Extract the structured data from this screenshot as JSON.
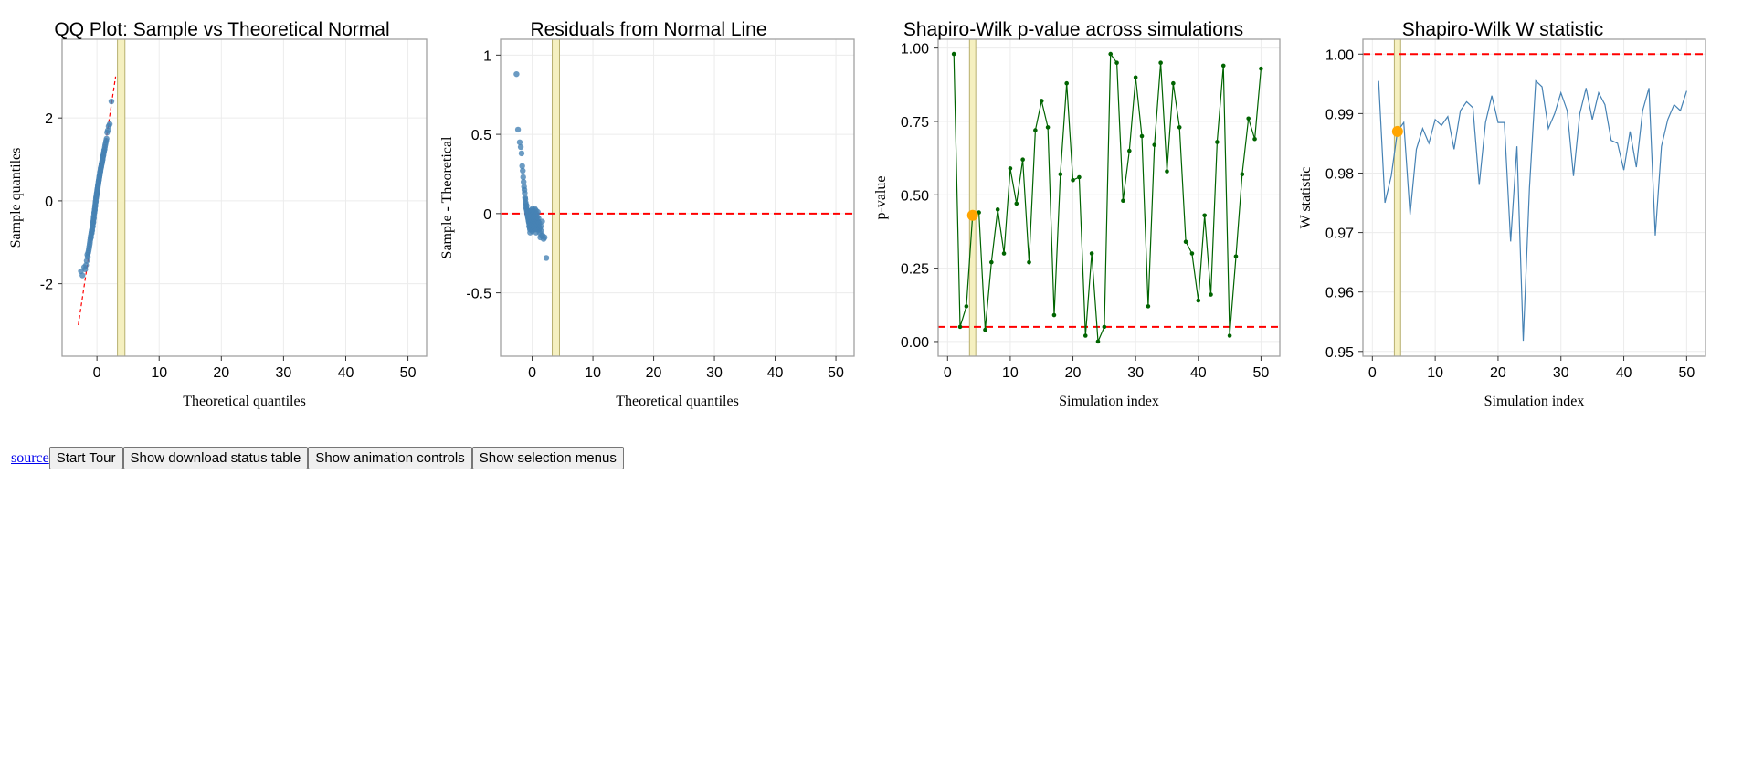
{
  "colors": {
    "points": "#4682b4",
    "ref_line": "#ff0000",
    "pvalue_line": "#006400",
    "selected": "#ffa500",
    "selection_band": "#f5f0c0",
    "panel_border": "#a0a0a0",
    "grid": "#ececec"
  },
  "selected_index": 4,
  "toolbar": {
    "source_label": "source",
    "start_tour_label": "Start Tour",
    "download_label": "Show download status table",
    "animation_label": "Show animation controls",
    "selection_label": "Show selection menus"
  },
  "chart_data": [
    {
      "id": "qq",
      "type": "scatter",
      "title": "QQ Plot: Sample vs Theoretical Normal",
      "xlabel": "Theoretical quantiles",
      "ylabel": "Sample quantiles",
      "xlim": [
        -5.6,
        53
      ],
      "ylim": [
        -3.75,
        3.9
      ],
      "xticks": [
        0,
        10,
        20,
        30,
        40,
        50
      ],
      "yticks": [
        -2,
        0,
        2
      ],
      "grid": true,
      "selection_band": [
        3.3,
        4.5
      ],
      "reference_line": {
        "x": [
          -3,
          3
        ],
        "y": [
          -3,
          3
        ],
        "style": "dashed"
      },
      "points": {
        "x": [
          -2.58,
          -2.33,
          -2.05,
          -1.88,
          -1.75,
          -1.64,
          -1.55,
          -1.48,
          -1.41,
          -1.34,
          -1.28,
          -1.23,
          -1.17,
          -1.13,
          -1.08,
          -1.04,
          -0.99,
          -0.95,
          -0.92,
          -0.88,
          -0.84,
          -0.81,
          -0.77,
          -0.74,
          -0.71,
          -0.67,
          -0.64,
          -0.61,
          -0.58,
          -0.55,
          -0.52,
          -0.5,
          -0.47,
          -0.44,
          -0.41,
          -0.39,
          -0.36,
          -0.33,
          -0.31,
          -0.28,
          -0.25,
          -0.23,
          -0.2,
          -0.18,
          -0.15,
          -0.13,
          -0.1,
          -0.08,
          -0.05,
          -0.03,
          0.0,
          0.03,
          0.05,
          0.08,
          0.1,
          0.13,
          0.15,
          0.18,
          0.2,
          0.23,
          0.25,
          0.28,
          0.31,
          0.33,
          0.36,
          0.39,
          0.41,
          0.44,
          0.47,
          0.5,
          0.52,
          0.55,
          0.58,
          0.61,
          0.64,
          0.67,
          0.71,
          0.74,
          0.77,
          0.81,
          0.84,
          0.88,
          0.92,
          0.95,
          0.99,
          1.04,
          1.08,
          1.13,
          1.17,
          1.23,
          1.28,
          1.34,
          1.41,
          1.48,
          1.55,
          1.64,
          1.75,
          1.88,
          2.05,
          2.33
        ],
        "y": [
          -1.7,
          -1.8,
          -1.6,
          -1.65,
          -1.55,
          -1.45,
          -1.3,
          -1.35,
          -1.25,
          -1.2,
          -1.15,
          -1.1,
          -1.05,
          -1.0,
          -0.95,
          -0.9,
          -0.85,
          -0.88,
          -0.8,
          -0.75,
          -0.78,
          -0.7,
          -0.72,
          -0.65,
          -0.6,
          -0.62,
          -0.55,
          -0.5,
          -0.52,
          -0.45,
          -0.4,
          -0.42,
          -0.35,
          -0.3,
          -0.28,
          -0.25,
          -0.2,
          -0.22,
          -0.15,
          -0.1,
          -0.12,
          -0.05,
          0.0,
          -0.02,
          0.05,
          0.08,
          0.1,
          0.12,
          0.15,
          0.18,
          0.2,
          0.22,
          0.25,
          0.28,
          0.3,
          0.32,
          0.35,
          0.38,
          0.4,
          0.42,
          0.45,
          0.48,
          0.5,
          0.52,
          0.55,
          0.58,
          0.6,
          0.62,
          0.65,
          0.68,
          0.7,
          0.72,
          0.75,
          0.78,
          0.8,
          0.82,
          0.85,
          0.88,
          0.9,
          0.92,
          0.95,
          0.98,
          1.0,
          1.05,
          1.08,
          1.1,
          1.15,
          1.18,
          1.22,
          1.25,
          1.3,
          1.35,
          1.4,
          1.45,
          1.5,
          1.65,
          1.7,
          1.8,
          1.85,
          2.4
        ]
      }
    },
    {
      "id": "residuals",
      "type": "scatter",
      "title": "Residuals from Normal Line",
      "xlabel": "Theoretical quantiles",
      "ylabel": "Sample - Theoretical",
      "xlim": [
        -5.2,
        53
      ],
      "ylim": [
        -0.9,
        1.1
      ],
      "xticks": [
        0,
        10,
        20,
        30,
        40,
        50
      ],
      "yticks": [
        -0.5,
        0.0,
        0.5,
        1.0
      ],
      "grid": true,
      "selection_band": [
        3.3,
        4.5
      ],
      "reference_line": {
        "y": 0,
        "style": "dashed"
      },
      "points": {
        "x": [
          -2.58,
          -2.33,
          -2.05,
          -1.88,
          -1.75,
          -1.64,
          -1.55,
          -1.48,
          -1.41,
          -1.34,
          -1.28,
          -1.23,
          -1.17,
          -1.13,
          -1.08,
          -1.04,
          -0.99,
          -0.95,
          -0.92,
          -0.88,
          -0.84,
          -0.81,
          -0.77,
          -0.74,
          -0.71,
          -0.67,
          -0.64,
          -0.61,
          -0.58,
          -0.55,
          -0.52,
          -0.5,
          -0.47,
          -0.44,
          -0.41,
          -0.39,
          -0.36,
          -0.33,
          -0.31,
          -0.28,
          -0.25,
          -0.23,
          -0.2,
          -0.18,
          -0.15,
          -0.13,
          -0.1,
          -0.08,
          -0.05,
          -0.03,
          0.0,
          0.03,
          0.05,
          0.08,
          0.1,
          0.13,
          0.15,
          0.18,
          0.2,
          0.23,
          0.25,
          0.28,
          0.31,
          0.33,
          0.36,
          0.39,
          0.41,
          0.44,
          0.47,
          0.5,
          0.52,
          0.55,
          0.58,
          0.61,
          0.64,
          0.67,
          0.71,
          0.74,
          0.77,
          0.81,
          0.84,
          0.88,
          0.92,
          0.95,
          0.99,
          1.04,
          1.08,
          1.13,
          1.17,
          1.23,
          1.28,
          1.34,
          1.41,
          1.48,
          1.55,
          1.64,
          1.75,
          1.88,
          2.05,
          2.33
        ],
        "y": [
          0.88,
          0.53,
          0.45,
          0.42,
          0.38,
          0.3,
          0.27,
          0.23,
          0.2,
          0.17,
          0.15,
          0.13,
          0.1,
          0.09,
          0.07,
          0.06,
          0.04,
          0.03,
          0.05,
          0.02,
          0.01,
          0.0,
          -0.01,
          0.02,
          -0.02,
          -0.03,
          0.0,
          -0.04,
          -0.05,
          -0.03,
          -0.06,
          -0.08,
          -0.05,
          -0.02,
          -0.07,
          -0.09,
          -0.1,
          -0.12,
          -0.08,
          -0.04,
          -0.02,
          -0.06,
          0.01,
          -0.03,
          0.02,
          -0.05,
          0.0,
          -0.09,
          -0.1,
          -0.07,
          -0.11,
          0.03,
          -0.02,
          -0.04,
          0.01,
          -0.08,
          0.02,
          -0.06,
          -0.1,
          -0.03,
          0.0,
          -0.05,
          -0.07,
          0.01,
          -0.09,
          -0.04,
          -0.02,
          0.03,
          -0.06,
          -0.1,
          -0.01,
          -0.05,
          -0.08,
          0.02,
          -0.12,
          -0.03,
          -0.06,
          0.0,
          -0.04,
          -0.09,
          -0.02,
          -0.1,
          0.01,
          -0.07,
          -0.05,
          -0.03,
          -0.08,
          -0.1,
          -0.06,
          -0.12,
          -0.09,
          -0.15,
          -0.08,
          -0.11,
          -0.14,
          -0.05,
          -0.14,
          -0.16,
          -0.15,
          -0.28
        ]
      }
    },
    {
      "id": "pvalue",
      "type": "line",
      "title": "Shapiro-Wilk p-value across simulations",
      "xlabel": "Simulation index",
      "ylabel": "p-value",
      "xlim": [
        -1.5,
        53
      ],
      "ylim": [
        -0.05,
        1.03
      ],
      "xticks": [
        0,
        10,
        20,
        30,
        40,
        50
      ],
      "yticks": [
        0.0,
        0.25,
        0.5,
        0.75,
        1.0
      ],
      "ytick_labels": [
        "0.00",
        "0.25",
        "0.50",
        "0.75",
        "1.00"
      ],
      "grid": true,
      "selection_band": [
        3.5,
        4.5
      ],
      "reference_line": {
        "y": 0.05,
        "style": "dashed"
      },
      "x": [
        1,
        2,
        3,
        4,
        5,
        6,
        7,
        8,
        9,
        10,
        11,
        12,
        13,
        14,
        15,
        16,
        17,
        18,
        19,
        20,
        21,
        22,
        23,
        24,
        25,
        26,
        27,
        28,
        29,
        30,
        31,
        32,
        33,
        34,
        35,
        36,
        37,
        38,
        39,
        40,
        41,
        42,
        43,
        44,
        45,
        46,
        47,
        48,
        49,
        50
      ],
      "values": [
        0.98,
        0.05,
        0.12,
        0.43,
        0.44,
        0.04,
        0.27,
        0.45,
        0.3,
        0.59,
        0.47,
        0.62,
        0.27,
        0.72,
        0.82,
        0.73,
        0.09,
        0.57,
        0.88,
        0.55,
        0.56,
        0.02,
        0.3,
        0.0,
        0.05,
        0.98,
        0.95,
        0.48,
        0.65,
        0.9,
        0.7,
        0.12,
        0.67,
        0.95,
        0.58,
        0.88,
        0.73,
        0.34,
        0.3,
        0.14,
        0.43,
        0.16,
        0.68,
        0.94,
        0.02,
        0.29,
        0.57,
        0.76,
        0.69,
        0.93
      ]
    },
    {
      "id": "wstat",
      "type": "line",
      "title": "Shapiro-Wilk W statistic",
      "xlabel": "Simulation index",
      "ylabel": "W statistic",
      "xlim": [
        -1.5,
        53
      ],
      "ylim": [
        0.9492,
        1.0025
      ],
      "xticks": [
        0,
        10,
        20,
        30,
        40,
        50
      ],
      "yticks": [
        0.95,
        0.96,
        0.97,
        0.98,
        0.99,
        1.0
      ],
      "ytick_labels": [
        "0.95",
        "0.96",
        "0.97",
        "0.98",
        "0.99",
        "1.00"
      ],
      "grid": true,
      "selection_band": [
        3.5,
        4.5
      ],
      "reference_line": {
        "y": 1.0,
        "style": "dashed"
      },
      "x": [
        1,
        2,
        3,
        4,
        5,
        6,
        7,
        8,
        9,
        10,
        11,
        12,
        13,
        14,
        15,
        16,
        17,
        18,
        19,
        20,
        21,
        22,
        23,
        24,
        25,
        26,
        27,
        28,
        29,
        30,
        31,
        32,
        33,
        34,
        35,
        36,
        37,
        38,
        39,
        40,
        41,
        42,
        43,
        44,
        45,
        46,
        47,
        48,
        49,
        50
      ],
      "values": [
        0.9955,
        0.975,
        0.9795,
        0.987,
        0.9885,
        0.973,
        0.984,
        0.9875,
        0.985,
        0.989,
        0.988,
        0.9895,
        0.984,
        0.9905,
        0.992,
        0.991,
        0.978,
        0.9885,
        0.993,
        0.9885,
        0.9885,
        0.9685,
        0.9845,
        0.9518,
        0.9775,
        0.9955,
        0.9945,
        0.9875,
        0.99,
        0.9935,
        0.9905,
        0.9795,
        0.99,
        0.9943,
        0.989,
        0.9935,
        0.9915,
        0.9855,
        0.985,
        0.9805,
        0.987,
        0.981,
        0.9905,
        0.9943,
        0.9695,
        0.9845,
        0.989,
        0.9915,
        0.9905,
        0.9938
      ]
    }
  ]
}
